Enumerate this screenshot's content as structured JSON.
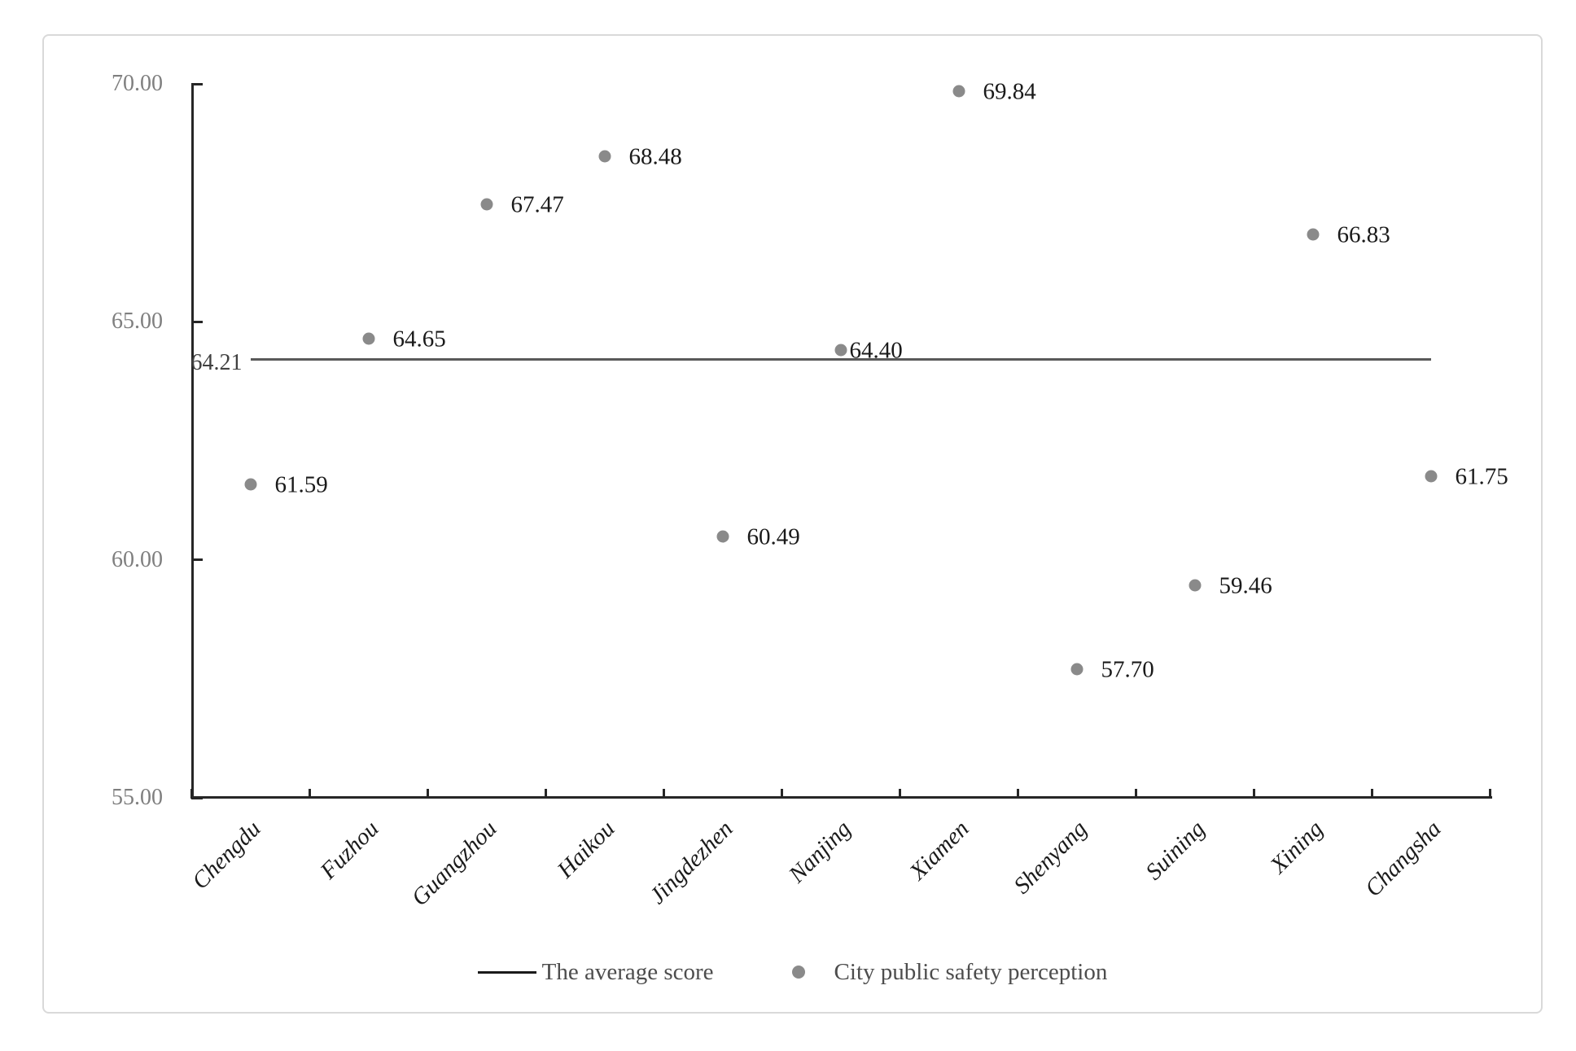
{
  "chart_data": {
    "type": "scatter",
    "title": "",
    "xlabel": "",
    "ylabel": "",
    "categories": [
      "Chengdu",
      "Fuzhou",
      "Guangzhou",
      "Haikou",
      "Jingdezhen",
      "Nanjing",
      "Xiamen",
      "Shenyang",
      "Suining",
      "Xining",
      "Changsha"
    ],
    "series": [
      {
        "name": "City public safety perception",
        "marker": "dot",
        "values": [
          61.59,
          64.65,
          67.47,
          68.48,
          60.49,
          64.4,
          69.84,
          57.7,
          59.46,
          66.83,
          61.75
        ],
        "value_labels": [
          "61.59",
          "64.65",
          "67.47",
          "68.48",
          "60.49",
          "64.40",
          "69.84",
          "57.70",
          "59.46",
          "66.83",
          "61.75"
        ]
      }
    ],
    "average_line": {
      "name": "The average score",
      "value": 64.21,
      "label": "64.21"
    },
    "y_axis": {
      "min": 55,
      "max": 70,
      "ticks": [
        {
          "value": 55,
          "label": "55.00"
        },
        {
          "value": 60,
          "label": "60.00"
        },
        {
          "value": 65,
          "label": "65.00"
        },
        {
          "value": 70,
          "label": "70.00"
        }
      ]
    },
    "legend": [
      {
        "marker": "line",
        "label": "The average score"
      },
      {
        "marker": "dot",
        "label": "City public safety perception"
      }
    ],
    "grid": "off",
    "legend_position": "bottom-center",
    "colors": {
      "dot": "#8a8a8a",
      "average_line": "#595959",
      "axis": "#262626",
      "y_tick_label": "#7f7f7f",
      "data_label": "#1a1a1a",
      "average_label": "#404040",
      "legend_text": "#4d4d4d",
      "frame_border": "#d9d9d9"
    }
  }
}
